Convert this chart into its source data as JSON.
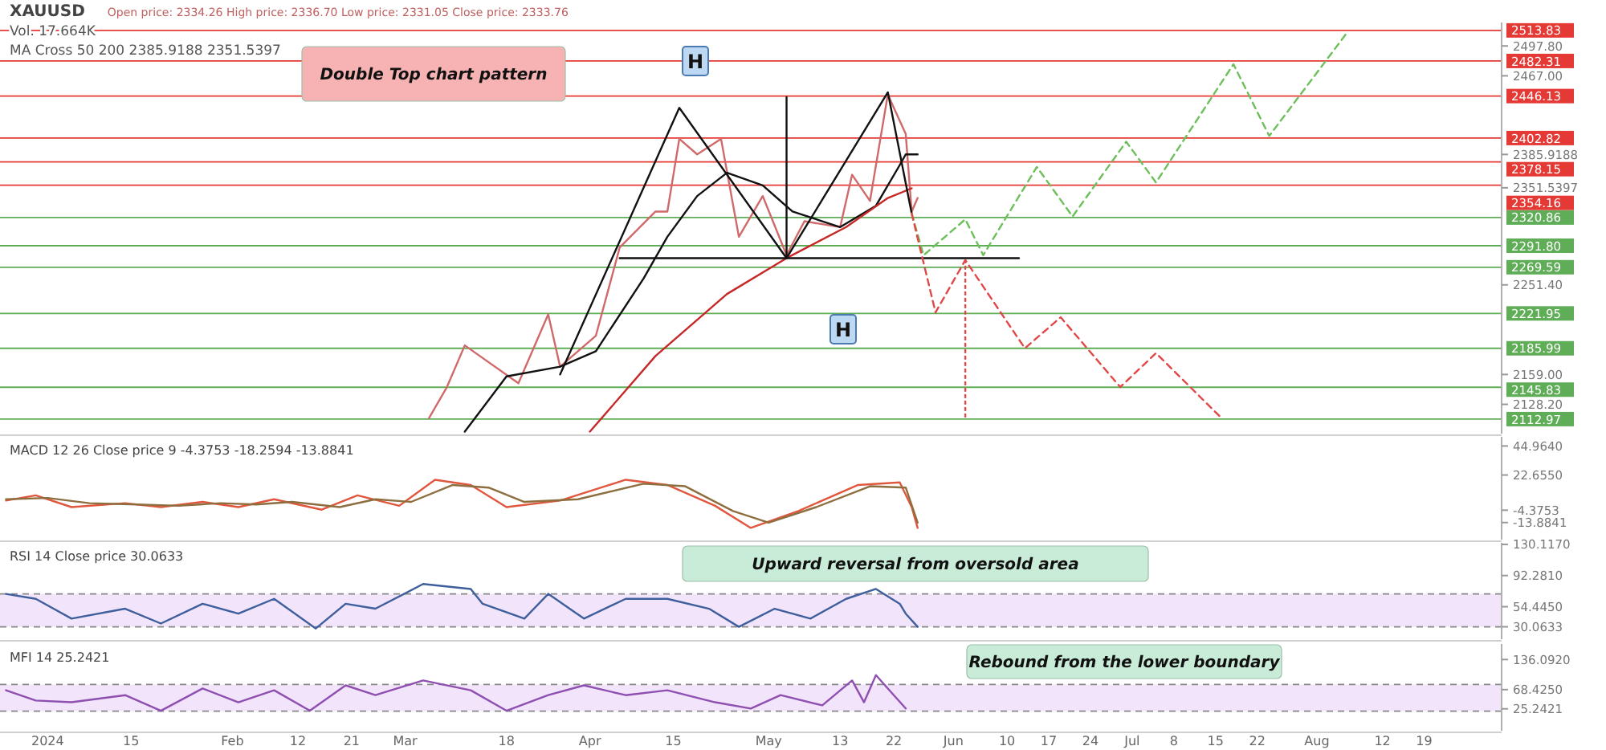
{
  "chart_data": [
    {
      "type": "line",
      "title": "XAUUSD",
      "subtitle": "Open price: 2334.26   High price: 2336.70   Low price: 2331.05   Close price: 2333.76",
      "xlim": [
        "2023-12-24",
        "2024-09-01"
      ],
      "ylim": [
        2098,
        2522
      ],
      "yticks": [
        {
          "value": 2128.2,
          "label": "2128.20"
        },
        {
          "value": 2159,
          "label": "2159.00"
        },
        {
          "value": 2251.4,
          "label": "2251.40"
        },
        {
          "value": 2351.5397,
          "label": "2351.5397"
        },
        {
          "value": 2385.9188,
          "label": "2385.9188"
        },
        {
          "value": 2467,
          "label": "2467.00"
        },
        {
          "value": 2497.8,
          "label": "2497.80"
        }
      ],
      "tick_labels": "y",
      "series": [
        {
          "color": "#d06a6a",
          "x": [
            "2024-03-05",
            "2024-03-08",
            "2024-03-11",
            "2024-03-20",
            "2024-03-25",
            "2024-03-27",
            "2024-04-02",
            "2024-04-06",
            "2024-04-12",
            "2024-04-14",
            "2024-04-16",
            "2024-04-19",
            "2024-04-23",
            "2024-04-26",
            "2024-04-30",
            "2024-05-04",
            "2024-05-07",
            "2024-05-13",
            "2024-05-15",
            "2024-05-18",
            "2024-05-21",
            "2024-05-22",
            "2024-05-24",
            "2024-05-25",
            "2024-05-26"
          ],
          "values": [
            2114,
            2146,
            2189,
            2150,
            2221,
            2167,
            2199,
            2290,
            2327,
            2327,
            2402,
            2386,
            2402,
            2301,
            2343,
            2282,
            2317,
            2311,
            2365,
            2338,
            2448,
            2434,
            2407,
            2327,
            2341
          ]
        },
        {
          "color": "#111111",
          "x": [
            "2024-03-11",
            "2024-03-18",
            "2024-03-27",
            "2024-04-02",
            "2024-04-10",
            "2024-04-14",
            "2024-04-19",
            "2024-04-24",
            "2024-04-30",
            "2024-05-05",
            "2024-05-13",
            "2024-05-19",
            "2024-05-23",
            "2024-05-24",
            "2024-05-26"
          ],
          "values": [
            2100,
            2157,
            2167,
            2183,
            2258,
            2301,
            2343,
            2367,
            2354,
            2327,
            2311,
            2333,
            2375,
            2386,
            2386
          ]
        },
        {
          "color": "#c62828",
          "x": [
            "2024-04-01",
            "2024-04-12",
            "2024-04-24",
            "2024-05-04",
            "2024-05-14",
            "2024-05-21",
            "2024-05-25"
          ],
          "values": [
            2100,
            2178,
            2242,
            2279,
            2311,
            2341,
            2351
          ]
        },
        {
          "color": "#111111",
          "x": [
            "2024-03-27",
            "2024-04-16",
            "2024-05-04",
            "2024-05-21",
            "2024-05-25"
          ],
          "values": [
            2159,
            2434,
            2279,
            2450,
            2325
          ]
        },
        {
          "color": "#111111",
          "x": [
            "2024-04-06",
            "2024-06-12"
          ],
          "values": [
            2279,
            2279
          ]
        },
        {
          "color": "#111111",
          "x": [
            "2024-05-04",
            "2024-05-04"
          ],
          "values": [
            2279,
            2445
          ]
        },
        {
          "color": "#6cbf5a",
          "line_style": "dashed",
          "x": [
            "2024-05-25",
            "2024-05-27",
            "2024-06-03",
            "2024-06-06",
            "2024-06-15",
            "2024-06-21",
            "2024-06-30",
            "2024-07-05",
            "2024-07-18",
            "2024-07-24",
            "2024-08-06"
          ],
          "values": [
            2325,
            2282,
            2319,
            2282,
            2373,
            2322,
            2399,
            2357,
            2479,
            2405,
            2511
          ]
        },
        {
          "color": "#e04848",
          "line_style": "dashed",
          "x": [
            "2024-05-25",
            "2024-05-29",
            "2024-06-03",
            "2024-06-13",
            "2024-06-19",
            "2024-06-29",
            "2024-07-05",
            "2024-07-16"
          ],
          "values": [
            2325,
            2223,
            2277,
            2186,
            2218,
            2146,
            2181,
            2114
          ]
        },
        {
          "color": "#e04848",
          "line_style": "dotted",
          "x": [
            "2024-06-03",
            "2024-06-03"
          ],
          "values": [
            2277,
            2114
          ]
        }
      ],
      "ref_lines": [
        {
          "axis": "y",
          "value": 2513.83,
          "label": "2513.83",
          "color": "#e53935"
        },
        {
          "axis": "y",
          "value": 2482.31,
          "label": "2482.31",
          "color": "#e53935"
        },
        {
          "axis": "y",
          "value": 2446.13,
          "label": "2446.13",
          "color": "#e53935"
        },
        {
          "axis": "y",
          "value": 2402.82,
          "label": "2402.82",
          "color": "#e53935"
        },
        {
          "axis": "y",
          "value": 2378.15,
          "label": "2378.15",
          "color": "#e53935"
        },
        {
          "axis": "y",
          "value": 2354.16,
          "label": "2354.16",
          "color": "#e53935"
        },
        {
          "axis": "y",
          "value": 2320.86,
          "label": "2320.86",
          "color": "#5fae57"
        },
        {
          "axis": "y",
          "value": 2291.8,
          "label": "2291.80",
          "color": "#5fae57"
        },
        {
          "axis": "y",
          "value": 2269.59,
          "label": "2269.59",
          "color": "#5fae57"
        },
        {
          "axis": "y",
          "value": 2221.95,
          "label": "2221.95",
          "color": "#5fae57"
        },
        {
          "axis": "y",
          "value": 2185.99,
          "label": "2185.99",
          "color": "#5fae57"
        },
        {
          "axis": "y",
          "value": 2145.83,
          "label": "2145.83",
          "color": "#5fae57"
        },
        {
          "axis": "y",
          "value": 2112.97,
          "label": "2112.97",
          "color": "#5fae57"
        }
      ],
      "annotations": [
        "Vol. 17.664K",
        "MA Cross 50 200 2385.9188 2351.5397",
        "Double Top chart pattern",
        "H",
        "H"
      ]
    },
    {
      "type": "line",
      "title": "MACD 12 26 Close price 9 -4.3753 -18.2594 -13.8841",
      "xlim": [
        "2023-12-24",
        "2024-09-01"
      ],
      "ylim": [
        -27,
        52
      ],
      "yticks": [
        {
          "value": -13.8841,
          "label": "-13.8841"
        },
        {
          "value": -4.3753,
          "label": "-4.3753"
        },
        {
          "value": 22.655,
          "label": "22.6550"
        },
        {
          "value": 44.964,
          "label": "44.9640"
        }
      ],
      "tick_labels": "y",
      "series": [
        {
          "color": "#e0573e",
          "x": [
            "2023-12-25",
            "2023-12-30",
            "2024-01-05",
            "2024-01-14",
            "2024-01-20",
            "2024-01-27",
            "2024-02-02",
            "2024-02-08",
            "2024-02-16",
            "2024-02-22",
            "2024-02-29",
            "2024-03-06",
            "2024-03-12",
            "2024-03-18",
            "2024-03-27",
            "2024-04-07",
            "2024-04-14",
            "2024-04-22",
            "2024-04-28",
            "2024-05-06",
            "2024-05-16",
            "2024-05-23",
            "2024-05-25",
            "2024-05-26"
          ],
          "values": [
            3,
            7,
            -2,
            1,
            -2,
            2,
            -2,
            4,
            -4,
            7,
            -1,
            19,
            15,
            -2,
            3,
            19,
            15,
            -1,
            -18,
            -5,
            15,
            17,
            -2,
            -18
          ]
        },
        {
          "color": "#8d6e3f",
          "x": [
            "2023-12-25",
            "2024-01-01",
            "2024-01-08",
            "2024-01-16",
            "2024-01-23",
            "2024-01-30",
            "2024-02-05",
            "2024-02-11",
            "2024-02-19",
            "2024-02-25",
            "2024-03-02",
            "2024-03-09",
            "2024-03-15",
            "2024-03-21",
            "2024-03-30",
            "2024-04-10",
            "2024-04-17",
            "2024-04-25",
            "2024-05-01",
            "2024-05-09",
            "2024-05-18",
            "2024-05-24",
            "2024-05-26"
          ],
          "values": [
            4,
            5,
            1,
            0,
            -1,
            1,
            0,
            2,
            -2,
            4,
            2,
            15,
            13,
            2,
            4,
            16,
            14,
            -5,
            -14,
            -2,
            14,
            13,
            -14
          ]
        }
      ]
    },
    {
      "type": "line",
      "title": "RSI 14 Close price 30.0633",
      "xlim": [
        "2023-12-24",
        "2024-09-01"
      ],
      "ylim": [
        15,
        132
      ],
      "yticks": [
        {
          "value": 30.0633,
          "label": "30.0633"
        },
        {
          "value": 54.445,
          "label": "54.4450"
        },
        {
          "value": 92.281,
          "label": "92.2810"
        },
        {
          "value": 130.117,
          "label": "130.1170"
        }
      ],
      "tick_labels": "y",
      "bands": [
        {
          "axis": "y",
          "from": 30,
          "to": 70,
          "color": "#f1e4fb"
        }
      ],
      "ref_lines": [
        {
          "axis": "y",
          "value": 30,
          "color": "#888888",
          "line_style": "dashed"
        },
        {
          "axis": "y",
          "value": 70,
          "color": "#888888",
          "line_style": "dashed"
        }
      ],
      "series": [
        {
          "color": "#3f5e9c",
          "x": [
            "2023-12-25",
            "2023-12-30",
            "2024-01-05",
            "2024-01-14",
            "2024-01-20",
            "2024-01-27",
            "2024-02-02",
            "2024-02-08",
            "2024-02-15",
            "2024-02-20",
            "2024-02-25",
            "2024-03-04",
            "2024-03-12",
            "2024-03-14",
            "2024-03-21",
            "2024-03-25",
            "2024-03-31",
            "2024-04-07",
            "2024-04-14",
            "2024-04-21",
            "2024-04-26",
            "2024-05-02",
            "2024-05-08",
            "2024-05-14",
            "2024-05-19",
            "2024-05-23",
            "2024-05-24",
            "2024-05-26"
          ],
          "values": [
            70,
            64,
            40,
            52,
            34,
            58,
            46,
            64,
            28,
            58,
            52,
            82,
            76,
            58,
            40,
            70,
            40,
            64,
            64,
            52,
            30,
            52,
            40,
            64,
            76,
            58,
            46,
            30
          ]
        }
      ],
      "annotations": [
        "Upward reversal from oversold area"
      ]
    },
    {
      "type": "line",
      "title": "MFI 14 25.2421",
      "xlim": [
        "2023-12-24",
        "2024-09-01"
      ],
      "ylim": [
        -24,
        171
      ],
      "yticks": [
        {
          "value": 25.2421,
          "label": "25.2421"
        },
        {
          "value": 68.425,
          "label": "68.4250"
        },
        {
          "value": 136.092,
          "label": "136.0920"
        }
      ],
      "xticks": [
        {
          "value": "2024-01-01",
          "label": "2024"
        },
        {
          "value": "2024-01-15",
          "label": "15"
        },
        {
          "value": "2024-02-01",
          "label": "Feb"
        },
        {
          "value": "2024-02-12",
          "label": "12"
        },
        {
          "value": "2024-02-21",
          "label": "21"
        },
        {
          "value": "2024-03-01",
          "label": "Mar"
        },
        {
          "value": "2024-03-18",
          "label": "18"
        },
        {
          "value": "2024-04-01",
          "label": "Apr"
        },
        {
          "value": "2024-04-15",
          "label": "15"
        },
        {
          "value": "2024-05-01",
          "label": "May"
        },
        {
          "value": "2024-05-13",
          "label": "13"
        },
        {
          "value": "2024-05-22",
          "label": "22"
        },
        {
          "value": "2024-06-01",
          "label": "Jun"
        },
        {
          "value": "2024-06-10",
          "label": "10"
        },
        {
          "value": "2024-06-17",
          "label": "17"
        },
        {
          "value": "2024-06-24",
          "label": "24"
        },
        {
          "value": "2024-07-01",
          "label": "Jul"
        },
        {
          "value": "2024-07-08",
          "label": "8"
        },
        {
          "value": "2024-07-15",
          "label": "15"
        },
        {
          "value": "2024-07-22",
          "label": "22"
        },
        {
          "value": "2024-08-01",
          "label": "Aug"
        },
        {
          "value": "2024-08-12",
          "label": "12"
        },
        {
          "value": "2024-08-19",
          "label": "19"
        }
      ],
      "bands": [
        {
          "axis": "y",
          "from": 20,
          "to": 80,
          "color": "#f1e4fb"
        }
      ],
      "ref_lines": [
        {
          "axis": "y",
          "value": 20,
          "color": "#888888",
          "line_style": "dashed"
        },
        {
          "axis": "y",
          "value": 80,
          "color": "#888888",
          "line_style": "dashed"
        }
      ],
      "series": [
        {
          "color": "#8e4fb0",
          "x": [
            "2023-12-25",
            "2023-12-30",
            "2024-01-05",
            "2024-01-14",
            "2024-01-20",
            "2024-01-27",
            "2024-02-02",
            "2024-02-08",
            "2024-02-14",
            "2024-02-20",
            "2024-02-25",
            "2024-03-04",
            "2024-03-12",
            "2024-03-18",
            "2024-03-25",
            "2024-03-31",
            "2024-04-07",
            "2024-04-14",
            "2024-04-22",
            "2024-04-28",
            "2024-05-03",
            "2024-05-10",
            "2024-05-15",
            "2024-05-17",
            "2024-05-19",
            "2024-05-22",
            "2024-05-24"
          ],
          "values": [
            67,
            44,
            40,
            56,
            21,
            71,
            40,
            67,
            21,
            78,
            56,
            89,
            67,
            21,
            56,
            78,
            56,
            67,
            40,
            26,
            56,
            33,
            89,
            40,
            101,
            56,
            26
          ]
        }
      ],
      "annotations": [
        "Rebound from the lower boundary"
      ]
    }
  ]
}
